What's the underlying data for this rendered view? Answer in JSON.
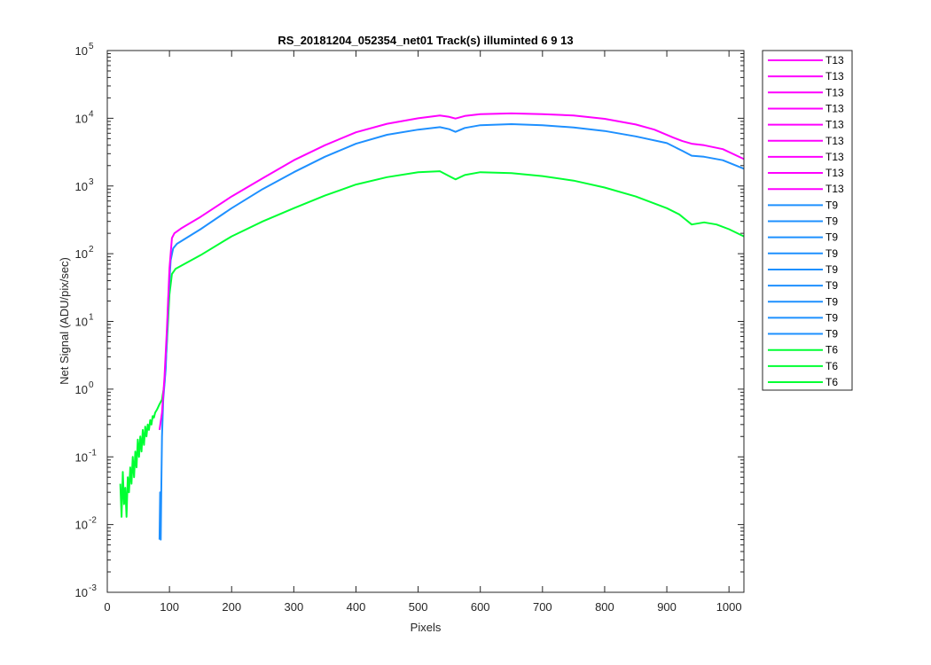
{
  "chart_data": {
    "type": "line",
    "title": "RS_20181204_052354_net01  Track(s) illuminted 6   9  13",
    "xlabel": "Pixels",
    "ylabel": "Net Signal (ADU/pix/sec)",
    "xlim": [
      0,
      1024
    ],
    "ylim": [
      0.001,
      100000
    ],
    "yscale": "log",
    "grid": false,
    "legend_position": "outside-right",
    "x_ticks": [
      {
        "v": 0,
        "label": "0"
      },
      {
        "v": 100,
        "label": "100"
      },
      {
        "v": 200,
        "label": "200"
      },
      {
        "v": 300,
        "label": "300"
      },
      {
        "v": 400,
        "label": "400"
      },
      {
        "v": 500,
        "label": "500"
      },
      {
        "v": 600,
        "label": "600"
      },
      {
        "v": 700,
        "label": "700"
      },
      {
        "v": 800,
        "label": "800"
      },
      {
        "v": 900,
        "label": "900"
      },
      {
        "v": 1000,
        "label": "1000"
      }
    ],
    "y_ticks": [
      {
        "v": 0.001,
        "base": "10",
        "exp": "-3"
      },
      {
        "v": 0.01,
        "base": "10",
        "exp": "-2"
      },
      {
        "v": 0.1,
        "base": "10",
        "exp": "-1"
      },
      {
        "v": 1,
        "base": "10",
        "exp": "0"
      },
      {
        "v": 10,
        "base": "10",
        "exp": "1"
      },
      {
        "v": 100,
        "base": "10",
        "exp": "2"
      },
      {
        "v": 1000,
        "base": "10",
        "exp": "3"
      },
      {
        "v": 10000,
        "base": "10",
        "exp": "4"
      },
      {
        "v": 100000,
        "base": "10",
        "exp": "5"
      }
    ],
    "legend_entries": [
      {
        "label": "T13",
        "color": "#ff00ff"
      },
      {
        "label": "T13",
        "color": "#ff00ff"
      },
      {
        "label": "T13",
        "color": "#ff00ff"
      },
      {
        "label": "T13",
        "color": "#ff00ff"
      },
      {
        "label": "T13",
        "color": "#ff00ff"
      },
      {
        "label": "T13",
        "color": "#ff00ff"
      },
      {
        "label": "T13",
        "color": "#ff00ff"
      },
      {
        "label": "T13",
        "color": "#ff00ff"
      },
      {
        "label": "T13",
        "color": "#ff00ff"
      },
      {
        "label": "T9",
        "color": "#1e90ff"
      },
      {
        "label": "T9",
        "color": "#1e90ff"
      },
      {
        "label": "T9",
        "color": "#1e90ff"
      },
      {
        "label": "T9",
        "color": "#1e90ff"
      },
      {
        "label": "T9",
        "color": "#1e90ff"
      },
      {
        "label": "T9",
        "color": "#1e90ff"
      },
      {
        "label": "T9",
        "color": "#1e90ff"
      },
      {
        "label": "T9",
        "color": "#1e90ff"
      },
      {
        "label": "T9",
        "color": "#1e90ff"
      },
      {
        "label": "T6",
        "color": "#00ff33"
      },
      {
        "label": "T6",
        "color": "#00ff33"
      },
      {
        "label": "T6",
        "color": "#00ff33"
      }
    ],
    "series": [
      {
        "name": "T13",
        "color": "#ff00ff",
        "points": [
          [
            84,
            0.25
          ],
          [
            88,
            0.45
          ],
          [
            92,
            1.5
          ],
          [
            96,
            8
          ],
          [
            100,
            60
          ],
          [
            104,
            170
          ],
          [
            108,
            200
          ],
          [
            120,
            240
          ],
          [
            150,
            350
          ],
          [
            200,
            700
          ],
          [
            250,
            1300
          ],
          [
            300,
            2400
          ],
          [
            350,
            4000
          ],
          [
            400,
            6200
          ],
          [
            450,
            8300
          ],
          [
            500,
            10000
          ],
          [
            535,
            11000
          ],
          [
            550,
            10500
          ],
          [
            560,
            9900
          ],
          [
            575,
            10800
          ],
          [
            600,
            11500
          ],
          [
            650,
            11800
          ],
          [
            700,
            11500
          ],
          [
            750,
            11000
          ],
          [
            800,
            9800
          ],
          [
            850,
            8100
          ],
          [
            880,
            6800
          ],
          [
            910,
            5200
          ],
          [
            925,
            4600
          ],
          [
            940,
            4200
          ],
          [
            960,
            4000
          ],
          [
            990,
            3500
          ],
          [
            1024,
            2500
          ]
        ]
      },
      {
        "name": "T9",
        "color": "#1e90ff",
        "points": [
          [
            84,
            0.006
          ],
          [
            85,
            0.03
          ],
          [
            86,
            0.006
          ],
          [
            87,
            0.04
          ],
          [
            88,
            0.2
          ],
          [
            90,
            0.7
          ],
          [
            94,
            2
          ],
          [
            98,
            20
          ],
          [
            102,
            80
          ],
          [
            106,
            120
          ],
          [
            112,
            140
          ],
          [
            150,
            230
          ],
          [
            200,
            470
          ],
          [
            250,
            900
          ],
          [
            300,
            1600
          ],
          [
            350,
            2700
          ],
          [
            400,
            4200
          ],
          [
            450,
            5700
          ],
          [
            500,
            6800
          ],
          [
            535,
            7400
          ],
          [
            550,
            6900
          ],
          [
            560,
            6300
          ],
          [
            575,
            7200
          ],
          [
            600,
            7900
          ],
          [
            650,
            8200
          ],
          [
            700,
            7900
          ],
          [
            750,
            7300
          ],
          [
            800,
            6500
          ],
          [
            850,
            5400
          ],
          [
            900,
            4300
          ],
          [
            925,
            3300
          ],
          [
            940,
            2800
          ],
          [
            960,
            2700
          ],
          [
            990,
            2400
          ],
          [
            1024,
            1800
          ]
        ]
      },
      {
        "name": "T6",
        "color": "#00ff33",
        "points": [
          [
            21,
            0.04
          ],
          [
            23,
            0.013
          ],
          [
            25,
            0.06
          ],
          [
            27,
            0.02
          ],
          [
            29,
            0.035
          ],
          [
            31,
            0.013
          ],
          [
            33,
            0.05
          ],
          [
            35,
            0.03
          ],
          [
            37,
            0.07
          ],
          [
            39,
            0.04
          ],
          [
            41,
            0.1
          ],
          [
            43,
            0.05
          ],
          [
            45,
            0.12
          ],
          [
            47,
            0.07
          ],
          [
            49,
            0.18
          ],
          [
            51,
            0.1
          ],
          [
            53,
            0.2
          ],
          [
            55,
            0.12
          ],
          [
            57,
            0.25
          ],
          [
            59,
            0.15
          ],
          [
            61,
            0.28
          ],
          [
            63,
            0.2
          ],
          [
            65,
            0.3
          ],
          [
            67,
            0.25
          ],
          [
            69,
            0.35
          ],
          [
            71,
            0.3
          ],
          [
            73,
            0.4
          ],
          [
            75,
            0.38
          ],
          [
            77,
            0.45
          ],
          [
            80,
            0.5
          ],
          [
            84,
            0.6
          ],
          [
            88,
            0.7
          ],
          [
            92,
            1.2
          ],
          [
            96,
            5
          ],
          [
            100,
            25
          ],
          [
            104,
            50
          ],
          [
            110,
            60
          ],
          [
            150,
            95
          ],
          [
            200,
            180
          ],
          [
            250,
            300
          ],
          [
            300,
            470
          ],
          [
            350,
            720
          ],
          [
            400,
            1050
          ],
          [
            450,
            1350
          ],
          [
            500,
            1600
          ],
          [
            535,
            1650
          ],
          [
            550,
            1400
          ],
          [
            560,
            1250
          ],
          [
            575,
            1450
          ],
          [
            600,
            1600
          ],
          [
            650,
            1550
          ],
          [
            700,
            1400
          ],
          [
            750,
            1200
          ],
          [
            800,
            950
          ],
          [
            850,
            700
          ],
          [
            900,
            470
          ],
          [
            920,
            380
          ],
          [
            930,
            320
          ],
          [
            940,
            270
          ],
          [
            960,
            290
          ],
          [
            980,
            270
          ],
          [
            1000,
            230
          ],
          [
            1024,
            180
          ]
        ]
      }
    ]
  }
}
